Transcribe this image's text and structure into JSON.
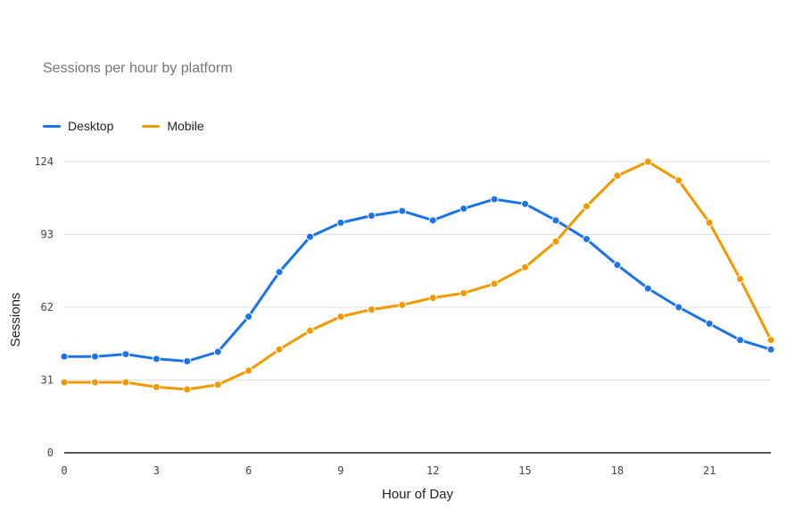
{
  "chart_data": {
    "type": "line",
    "title": "Sessions per hour by platform",
    "xlabel": "Hour of Day",
    "ylabel": "Sessions",
    "x": [
      0,
      1,
      2,
      3,
      4,
      5,
      6,
      7,
      8,
      9,
      10,
      11,
      12,
      13,
      14,
      15,
      16,
      17,
      18,
      19,
      20,
      21,
      22,
      23
    ],
    "xlim": [
      0,
      23
    ],
    "ylim": [
      0,
      124
    ],
    "xticks": [
      0,
      3,
      6,
      9,
      12,
      15,
      18,
      21
    ],
    "yticks": [
      0,
      31,
      62,
      93,
      124
    ],
    "grid": true,
    "legend_position": "top-left",
    "series": [
      {
        "name": "Desktop",
        "color": "#1a73e8",
        "values": [
          41,
          41,
          42,
          40,
          39,
          43,
          58,
          77,
          92,
          98,
          101,
          103,
          99,
          104,
          108,
          106,
          99,
          91,
          80,
          70,
          62,
          55,
          48,
          44
        ]
      },
      {
        "name": "Mobile",
        "color": "#f29900",
        "values": [
          30,
          30,
          30,
          28,
          27,
          29,
          35,
          44,
          52,
          58,
          61,
          63,
          66,
          68,
          72,
          79,
          90,
          105,
          118,
          124,
          116,
          98,
          74,
          48
        ]
      }
    ]
  }
}
